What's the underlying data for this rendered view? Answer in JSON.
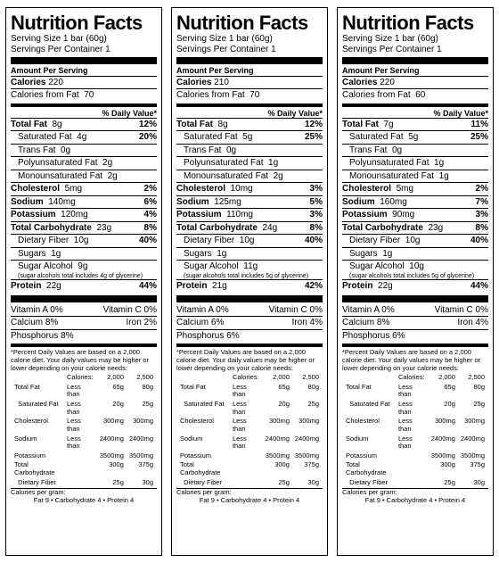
{
  "labels": {
    "title": "Nutrition Facts",
    "servingSize": "Serving Size 1 bar (60g)",
    "servings": "Servings Per Container 1",
    "aps": "Amount Per Serving",
    "calories": "Calories",
    "calFromFat": "Calories from Fat",
    "dvHeader": "% Daily Value*",
    "totalFat": "Total Fat",
    "satFat": "Saturated Fat",
    "transFat": "Trans Fat",
    "polyFat": "Polyunsaturated Fat",
    "monoFat": "Monounsaturated Fat",
    "cholesterol": "Cholesterol",
    "sodium": "Sodium",
    "potassium": "Potassium",
    "totalCarb": "Total Carbohydrate",
    "fiber": "Dietary Fiber",
    "sugars": "Sugars",
    "sugarAlc": "Sugar Alcohol",
    "protein": "Protein",
    "vitA": "Vitamin A",
    "vitC": "Vitamin C",
    "calcium": "Calcium",
    "iron": "Iron",
    "phosphorus": "Phosphorus",
    "footnote": "*Percent Daily Values are based on a 2,000 calorie diet. Your daily values may be higher or lower depending on your calorie needs:",
    "calHdr": "Calories:",
    "c2000": "2,000",
    "c2500": "2,500",
    "lt": "Less than",
    "cpg": "Calories per gram:",
    "cpgLine": "Fat 9  •  Carbohydrate 4  •  Protein 4",
    "ftRows": [
      {
        "n": "Total Fat",
        "q": "Less than",
        "a": "65g",
        "b": "80g"
      },
      {
        "n": "Saturated Fat",
        "q": "Less than",
        "a": "20g",
        "b": "25g"
      },
      {
        "n": "Cholesterol",
        "q": "Less than",
        "a": "300mg",
        "b": "300mg"
      },
      {
        "n": "Sodium",
        "q": "Less than",
        "a": "2400mg",
        "b": "2400mg"
      },
      {
        "n": "Potassium",
        "q": "",
        "a": "3500mg",
        "b": "3500mg"
      },
      {
        "n": "Total Carbohydrate",
        "q": "",
        "a": "300g",
        "b": "375g"
      },
      {
        "n": "Dietary Fiber",
        "q": "",
        "a": "25g",
        "b": "30g"
      }
    ]
  },
  "p": [
    {
      "calories": "220",
      "calFat": "70",
      "totalFat": "8g",
      "totalFatDV": "12%",
      "satFat": "4g",
      "satFatDV": "20%",
      "transFat": "0g",
      "polyFat": "2g",
      "monoFat": "2g",
      "chol": "5mg",
      "cholDV": "2%",
      "sodium": "140mg",
      "sodiumDV": "6%",
      "potassium": "120mg",
      "potassiumDV": "4%",
      "carb": "23g",
      "carbDV": "8%",
      "fiber": "10g",
      "fiberDV": "40%",
      "sugars": "1g",
      "sugarAlc": "9g",
      "sugarNote": "(sugar alcohols total includes 4g of glycerine)",
      "protein": "22g",
      "proteinDV": "44%",
      "vitA": "0%",
      "vitC": "0%",
      "calcium": "8%",
      "iron": "2%",
      "phos": "8%"
    },
    {
      "calories": "210",
      "calFat": "70",
      "totalFat": "8g",
      "totalFatDV": "12%",
      "satFat": "5g",
      "satFatDV": "25%",
      "transFat": "0g",
      "polyFat": "1g",
      "monoFat": "2g",
      "chol": "10mg",
      "cholDV": "3%",
      "sodium": "125mg",
      "sodiumDV": "5%",
      "potassium": "110mg",
      "potassiumDV": "3%",
      "carb": "24g",
      "carbDV": "8%",
      "fiber": "10g",
      "fiberDV": "40%",
      "sugars": "1g",
      "sugarAlc": "11g",
      "sugarNote": "(sugar alcohols total includes 5g of glycerine)",
      "protein": "21g",
      "proteinDV": "42%",
      "vitA": "0%",
      "vitC": "0%",
      "calcium": "6%",
      "iron": "4%",
      "phos": "6%"
    },
    {
      "calories": "220",
      "calFat": "60",
      "totalFat": "7g",
      "totalFatDV": "11%",
      "satFat": "5g",
      "satFatDV": "25%",
      "transFat": "0g",
      "polyFat": "1g",
      "monoFat": "1g",
      "chol": "5mg",
      "cholDV": "2%",
      "sodium": "160mg",
      "sodiumDV": "7%",
      "potassium": "90mg",
      "potassiumDV": "3%",
      "carb": "23g",
      "carbDV": "8%",
      "fiber": "10g",
      "fiberDV": "40%",
      "sugars": "1g",
      "sugarAlc": "10g",
      "sugarNote": "(sugar alcohols total includes 5g of glycerine)",
      "protein": "22g",
      "proteinDV": "44%",
      "vitA": "0%",
      "vitC": "0%",
      "calcium": "8%",
      "iron": "4%",
      "phos": "6%"
    }
  ]
}
